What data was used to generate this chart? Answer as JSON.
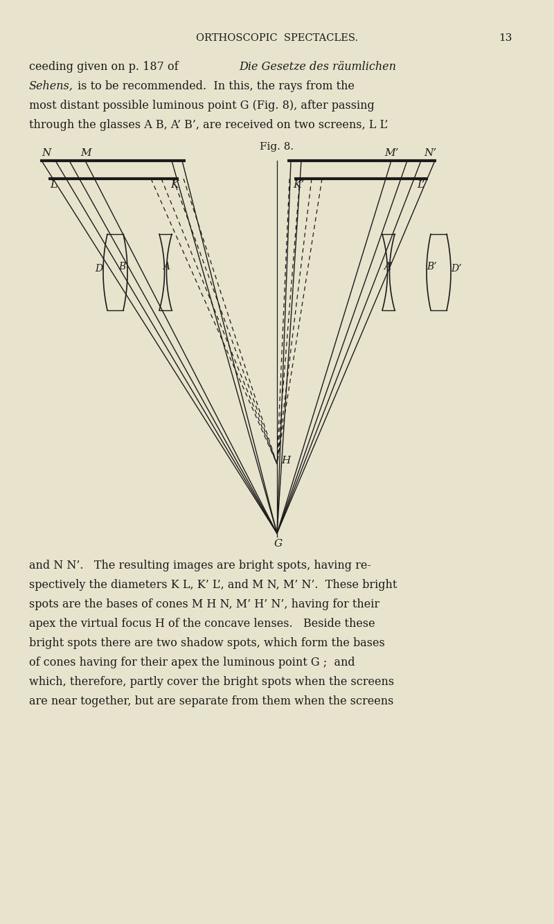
{
  "bg_color": "#e8e3cc",
  "text_color": "#1a1a1a",
  "line_color": "#1a1a1a",
  "page_title": "ORTHOSCOPIC  SPECTACLES.",
  "page_number": "13",
  "fig_label": "Fig. 8.",
  "header_text_line0_normal": "ceeding given on p. 187 of ",
  "header_text_line0_italic": "Die Gesetze des räumlichen",
  "header_text_line1_italic": "Sehens,",
  "header_text_line1_normal": " is to be recommended.  In this, the rays from the",
  "header_text_line2": "most distant possible luminous point G (Fig. 8), after passing",
  "header_text_line3": "through the glasses A B, A’ B’, are received on two screens, L L’",
  "footer_text": [
    "and N N’.   The resulting images are bright spots, having re-",
    "spectively the diameters K L, K’ L’, and M N, M’ N’.  These bright",
    "spots are the bases of cones M H N, M’ H’ N’, having for their",
    "apex the virtual focus H of the concave lenses.   Beside these",
    "bright spots there are two shadow spots, which form the bases",
    "of cones having for their apex the luminous point G ;  and",
    "which, therefore, partly cover the bright spots when the screens",
    "are near together, but are separate from them when the screens"
  ]
}
